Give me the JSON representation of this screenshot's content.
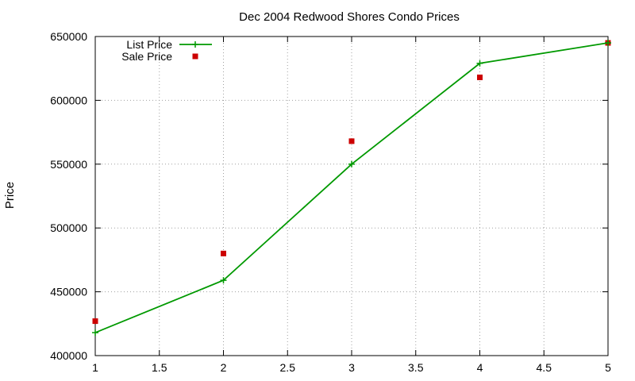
{
  "chart_data": {
    "type": "line",
    "title": "Dec 2004 Redwood Shores Condo Prices",
    "xlabel": "",
    "ylabel": "Price",
    "xlim": [
      1,
      5
    ],
    "ylim": [
      400000,
      650000
    ],
    "xticks": [
      1,
      1.5,
      2,
      2.5,
      3,
      3.5,
      4,
      4.5,
      5
    ],
    "xtick_labels": [
      "1",
      "1.5",
      "2",
      "2.5",
      "3",
      "3.5",
      "4",
      "4.5",
      "5"
    ],
    "yticks": [
      400000,
      450000,
      500000,
      550000,
      600000,
      650000
    ],
    "ytick_labels": [
      "400000",
      "450000",
      "500000",
      "550000",
      "600000",
      "650000"
    ],
    "grid": true,
    "legend_position": "top-left",
    "series": [
      {
        "name": "List Price",
        "style": "linespoints",
        "marker": "plus",
        "color": "#009900",
        "x": [
          1,
          2,
          3,
          4,
          5
        ],
        "y": [
          418000,
          459000,
          550000,
          629000,
          645000
        ]
      },
      {
        "name": "Sale Price",
        "style": "points",
        "marker": "square",
        "color": "#cc0000",
        "x": [
          1,
          2,
          3,
          4,
          5
        ],
        "y": [
          427000,
          480000,
          568000,
          618000,
          645000
        ]
      }
    ]
  }
}
